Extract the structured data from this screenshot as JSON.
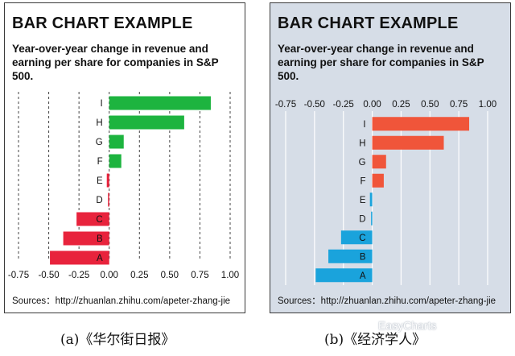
{
  "panels": [
    {
      "title": "BAR CHART EXAMPLE",
      "subtitle": "Year-over-year change in revenue and earning per share for companies in S&P 500.",
      "source": "Sources：http://zhuanlan.zhihu.com/apeter-zhang-jie",
      "caption": "(a)《华尔街日报》"
    },
    {
      "title": "BAR CHART EXAMPLE",
      "subtitle": "Year-over-year change in revenue and earning per share for companies in S&P 500.",
      "source": "Sources：http://zhuanlan.zhihu.com/apeter-zhang-jie",
      "caption": "(b)《经济学人》"
    }
  ],
  "watermark": "EasyCharts",
  "chart_data": [
    {
      "type": "bar",
      "orientation": "horizontal",
      "categories": [
        "I",
        "H",
        "G",
        "F",
        "E",
        "D",
        "C",
        "B",
        "A"
      ],
      "values": [
        0.84,
        0.62,
        0.12,
        0.1,
        -0.02,
        -0.01,
        -0.27,
        -0.38,
        -0.49
      ],
      "x_ticks": [
        "-0.75",
        "-0.50",
        "-0.25",
        "0.00",
        "0.25",
        "0.50",
        "0.75",
        "1.00"
      ],
      "xlim": [
        -0.75,
        1.0
      ],
      "axis_position": "bottom",
      "grid": "vertical dashed",
      "colors": {
        "positive": "#1db43f",
        "negative": "#e8233c"
      }
    },
    {
      "type": "bar",
      "orientation": "horizontal",
      "categories": [
        "I",
        "H",
        "G",
        "F",
        "E",
        "D",
        "C",
        "B",
        "A"
      ],
      "values": [
        0.84,
        0.62,
        0.12,
        0.1,
        -0.02,
        -0.01,
        -0.27,
        -0.38,
        -0.49
      ],
      "x_ticks": [
        "-0.75",
        "-0.50",
        "-0.25",
        "0.00",
        "0.25",
        "0.50",
        "0.75",
        "1.00"
      ],
      "xlim": [
        -0.75,
        1.0
      ],
      "axis_position": "top",
      "grid": "vertical solid",
      "colors": {
        "positive": "#f0553a",
        "negative": "#1aa3dc"
      }
    }
  ]
}
